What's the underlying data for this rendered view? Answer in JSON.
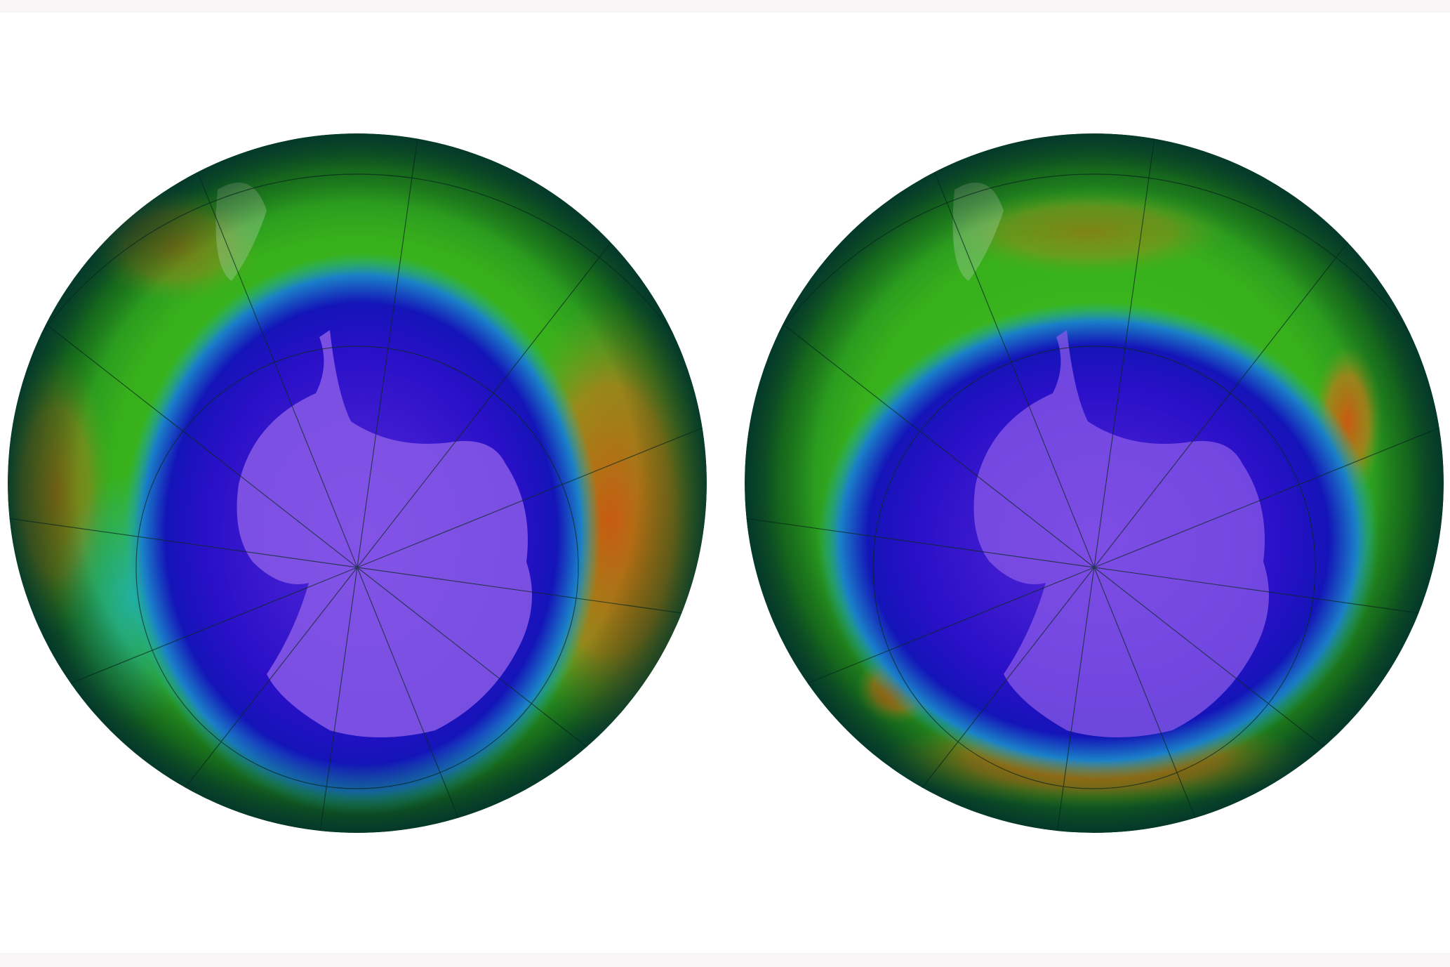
{
  "image": {
    "panels": [
      {
        "id": "left-globe",
        "hole_extent": "large"
      },
      {
        "id": "right-globe",
        "hole_extent": "smaller"
      }
    ],
    "colors": {
      "edge": "#0a4a3a",
      "green": "#2fa81a",
      "cyan": "#18b8a8",
      "blue": "#1010c8",
      "purple": "#7a3ad8",
      "land": "#8a5ae8",
      "orange": "#c86a10",
      "background": "#ffffff",
      "band": "#f7f5f6"
    }
  }
}
